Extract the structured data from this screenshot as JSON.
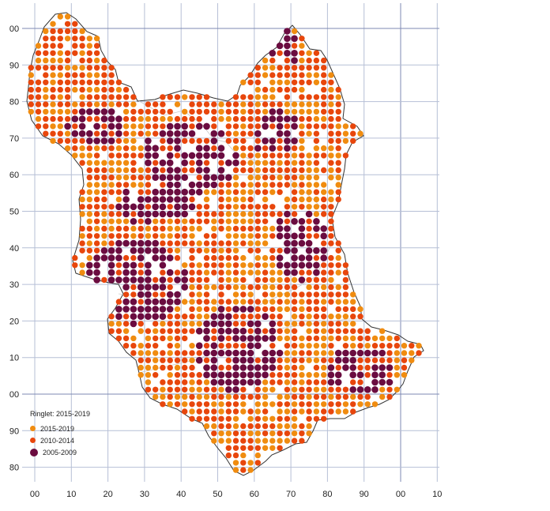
{
  "map": {
    "x_labels": [
      "00",
      "10",
      "20",
      "30",
      "40",
      "50",
      "60",
      "70",
      "80",
      "90",
      "00",
      "10"
    ],
    "y_labels": [
      "00",
      "90",
      "80",
      "70",
      "60",
      "50",
      "40",
      "30",
      "20",
      "10",
      "00",
      "90",
      "80"
    ]
  },
  "legend": {
    "title": "Ringlet:  2015-2019",
    "items": [
      {
        "label": "2015-2019",
        "color": "#f08c10"
      },
      {
        "label": "2010-2014",
        "color": "#e8460c"
      },
      {
        "label": "2005-2009",
        "color": "#6b0c40"
      }
    ]
  },
  "colors": {
    "period_2015_2019": "#f08c10",
    "period_2010_2014": "#e8460c",
    "period_2005_2009": "#6b0c40",
    "grid": "#b6bfd6",
    "major_grid": "#7d89b3"
  }
}
